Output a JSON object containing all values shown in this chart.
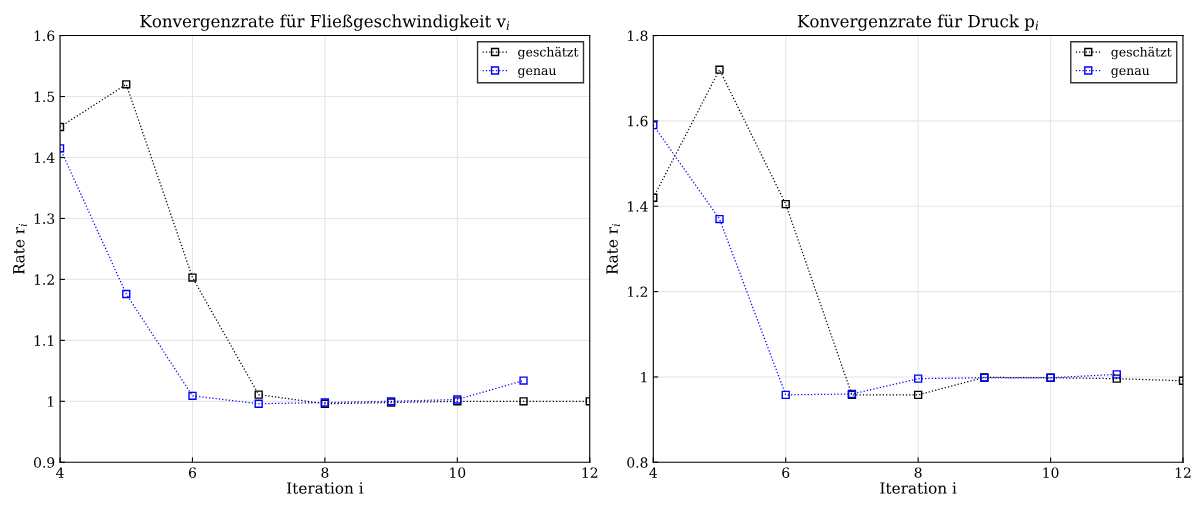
{
  "chart_data": [
    {
      "type": "line",
      "title": "Konvergenzrate für Fließgeschwindigkeit v$_{i}$",
      "xlabel": "Iteration i",
      "ylabel": "Rate r$_{i}$",
      "xlim": [
        4,
        12
      ],
      "xticks": [
        4,
        6,
        8,
        10,
        12
      ],
      "ylim": [
        0.9,
        1.6
      ],
      "yticks": [
        0.9,
        1,
        1.1,
        1.2,
        1.3,
        1.4,
        1.5,
        1.6
      ],
      "grid": true,
      "legend": "top right",
      "marker": "square",
      "line_style": "dotted",
      "series": [
        {
          "name": "geschätzt",
          "color": "#000000",
          "x": [
            4,
            5,
            6,
            7,
            8,
            9,
            10,
            11,
            12
          ],
          "values": [
            1.45,
            1.52,
            1.203,
            1.011,
            0.996,
            0.998,
            1.0,
            1.0,
            1.0
          ]
        },
        {
          "name": "genau",
          "color": "#0000ff",
          "x": [
            4,
            5,
            6,
            7,
            8,
            9,
            10,
            11
          ],
          "values": [
            1.415,
            1.176,
            1.009,
            0.996,
            0.998,
            1.0,
            1.003,
            1.034
          ]
        }
      ]
    },
    {
      "type": "line",
      "title": "Konvergenzrate für Druck p$_{i}$",
      "xlabel": "Iteration i",
      "ylabel": "Rate r$_{i}$",
      "xlim": [
        4,
        12
      ],
      "xticks": [
        4,
        6,
        8,
        10,
        12
      ],
      "ylim": [
        0.8,
        1.8
      ],
      "yticks": [
        0.8,
        1,
        1.2,
        1.4,
        1.6,
        1.8
      ],
      "grid": true,
      "legend": "top right",
      "marker": "square",
      "line_style": "dotted",
      "series": [
        {
          "name": "geschätzt",
          "color": "#000000",
          "x": [
            4,
            5,
            6,
            7,
            8,
            9,
            10,
            11,
            12
          ],
          "values": [
            1.42,
            1.72,
            1.405,
            0.958,
            0.958,
            0.999,
            0.998,
            0.996,
            0.991
          ]
        },
        {
          "name": "genau",
          "color": "#0000ff",
          "x": [
            4,
            5,
            6,
            7,
            8,
            9,
            10,
            11
          ],
          "values": [
            1.59,
            1.37,
            0.958,
            0.96,
            0.996,
            0.998,
            0.998,
            1.006
          ]
        }
      ]
    }
  ]
}
